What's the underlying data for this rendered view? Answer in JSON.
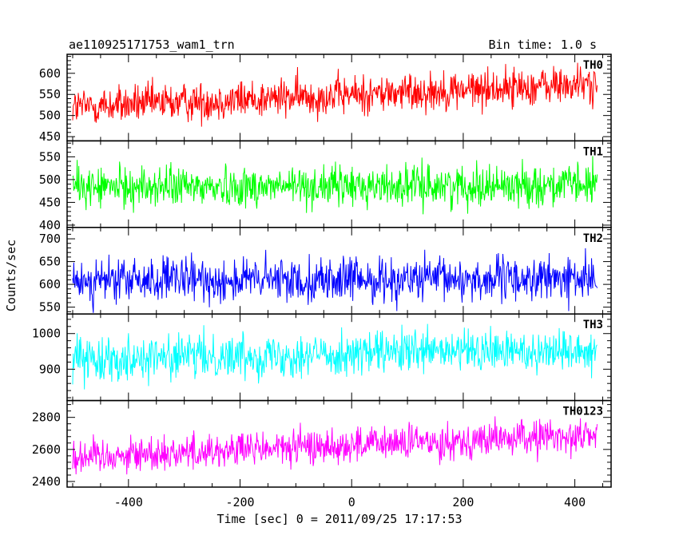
{
  "header": {
    "title": "ae110925171753_wam1_trn",
    "bin_time": "Bin time: 1.0 s"
  },
  "chart_data": {
    "type": "line",
    "title": "ae110925171753_wam1_trn",
    "subtitle": "Bin time: 1.0 s",
    "xlabel": "Time [sec] 0 = 2011/09/25 17:17:53",
    "ylabel": "Counts/sec",
    "xlim": [
      -510,
      465
    ],
    "x_ticks": [
      -400,
      -200,
      0,
      200,
      400
    ],
    "x_range": [
      -500,
      440
    ],
    "bin_seconds": 1.0,
    "grid": false,
    "panels": [
      {
        "label": "TH0",
        "color": "#ff0000",
        "ylim": [
          440,
          645
        ],
        "y_ticks": [
          450,
          500,
          550,
          600
        ],
        "trend_start": 520,
        "trend_end": 575,
        "noise_sigma": 23
      },
      {
        "label": "TH1",
        "color": "#00ff00",
        "ylim": [
          395,
          585
        ],
        "y_ticks": [
          400,
          450,
          500,
          550
        ],
        "trend_start": 483,
        "trend_end": 488,
        "noise_sigma": 22
      },
      {
        "label": "TH2",
        "color": "#0000ff",
        "ylim": [
          535,
          725
        ],
        "y_ticks": [
          550,
          600,
          650,
          700
        ],
        "trend_start": 608,
        "trend_end": 612,
        "noise_sigma": 24
      },
      {
        "label": "TH3",
        "color": "#00ffff",
        "ylim": [
          812,
          1055
        ],
        "y_ticks": [
          900,
          1000
        ],
        "trend_start": 930,
        "trend_end": 955,
        "noise_sigma": 30
      },
      {
        "label": "TH0123",
        "color": "#ff00ff",
        "ylim": [
          2365,
          2905
        ],
        "y_ticks": [
          2400,
          2600,
          2800
        ],
        "trend_start": 2555,
        "trend_end": 2690,
        "noise_sigma": 55
      }
    ]
  }
}
